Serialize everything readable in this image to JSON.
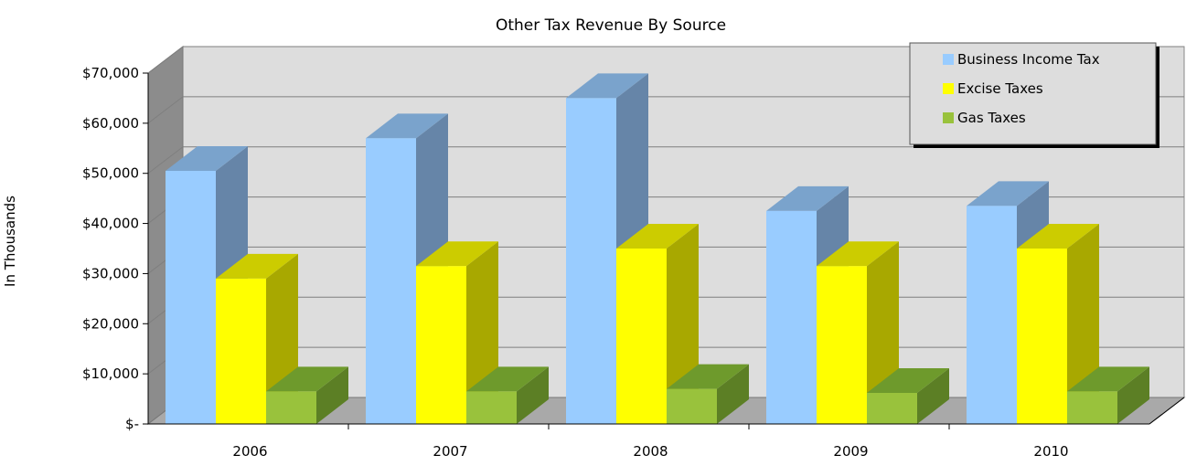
{
  "chart_data": {
    "type": "bar",
    "title": "Other Tax Revenue By Source",
    "ylabel": "In Thousands",
    "xlabel": "",
    "categories": [
      "2006",
      "2007",
      "2008",
      "2009",
      "2010"
    ],
    "ylim": [
      0,
      70000
    ],
    "yticks": [
      0,
      10000,
      20000,
      30000,
      40000,
      50000,
      60000,
      70000
    ],
    "ytick_labels": [
      "$-",
      "$10,000",
      "$20,000",
      "$30,000",
      "$40,000",
      "$50,000",
      "$60,000",
      "$70,000"
    ],
    "grid": true,
    "legend_position": "top-right",
    "three_d": true,
    "series": [
      {
        "name": "Business Income Tax",
        "values": [
          50500,
          57000,
          65000,
          42500,
          43500
        ],
        "color": "#99ccff",
        "side_color": "#6685a8",
        "top_color": "#7aa3cc"
      },
      {
        "name": "Excise Taxes",
        "values": [
          29000,
          31500,
          35000,
          31500,
          35000
        ],
        "color": "#ffff00",
        "side_color": "#a8a800",
        "top_color": "#cccc00"
      },
      {
        "name": "Gas Taxes",
        "values": [
          6500,
          6500,
          7000,
          6200,
          6500
        ],
        "color": "#99c23c",
        "side_color": "#5c7f25",
        "top_color": "#6e9a2c"
      }
    ]
  }
}
